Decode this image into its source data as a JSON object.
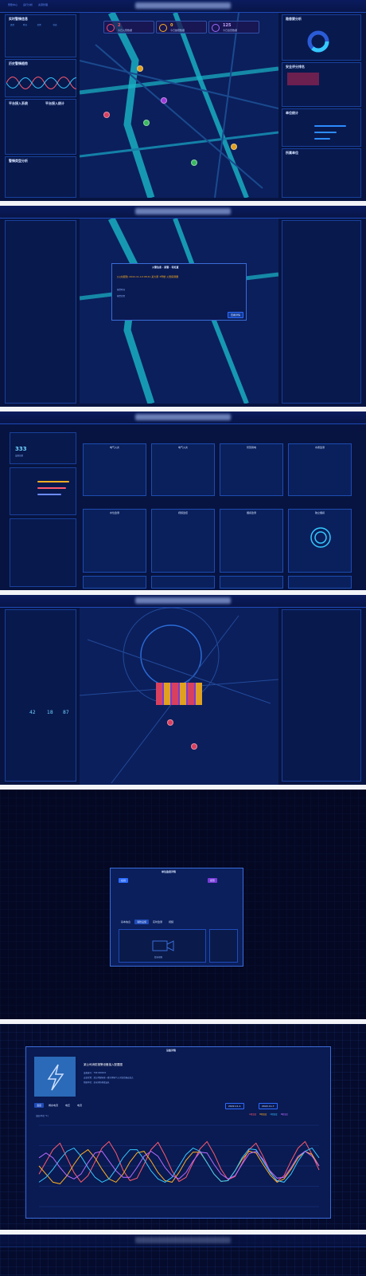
{
  "nav": [
    "预警中心",
    "运行分析",
    "资源管理"
  ],
  "left": {
    "realtime_title": "实时警情信息",
    "trend_title": "历史警情趋势",
    "platform_title": "平台接入系统",
    "platform_title2": "平台接入统计",
    "stats_title": "警情类型分析",
    "table_headers": [
      "类型",
      "时间",
      "位置",
      "状态"
    ],
    "trend_tabs": [
      "日",
      "周",
      "月"
    ],
    "platform_labels": [
      "火灾报警",
      "电气火灾",
      "消防水系统",
      "视频监控"
    ],
    "stat_rows": [
      "火灾报警",
      "电气火灾",
      "消防用水",
      "故障报警",
      "设备离线",
      "其他"
    ]
  },
  "map_stats": [
    {
      "num": "2",
      "label": "今日火警数据",
      "color": "#ff4d6a"
    },
    {
      "num": "0",
      "label": "今日故障数据",
      "color": "#ffb020"
    },
    {
      "num": "125",
      "label": "今日巡查数据",
      "color": "#9d6bff"
    }
  ],
  "right": {
    "analysis_title": "隐患要分析",
    "legend": [
      "一级隐患",
      "二级隐患",
      "三级隐患"
    ],
    "safety_title": "安全评分排名",
    "safety_headers": [
      "排名",
      "单位名称",
      "评分"
    ],
    "unit_title": "单位统计",
    "unit_tabs": [
      "全部",
      "街道",
      "社区"
    ],
    "unit_rows": [
      "在线单位",
      "离线单位",
      "报警单位",
      "故障单位"
    ],
    "org_title": "所属单位",
    "org_tree": [
      "市消防支队",
      "区大队",
      "城东中队",
      "城西中队",
      "街道办事处"
    ]
  },
  "popup": {
    "header": "火警信息 · 报警 · 待处置",
    "alarm_text": "[火灾报警] 2022-11-10 08:41 某大厦 3号楼 火警探测器",
    "fields": [
      "报警时间",
      "报警位置",
      "联系人",
      "处置状态"
    ],
    "button": "查看详情"
  },
  "monitor": {
    "search_placeholder": "请输入单位名称",
    "total_num": "333",
    "total_label": "设备总数",
    "cards": [
      "电气火灾",
      "电气火灾",
      "智慧用电",
      "水质监测",
      "水位监测",
      "视频监控",
      "烟感监测",
      "独立烟感"
    ],
    "status": [
      "正常",
      "报警",
      "故障",
      "离线"
    ]
  },
  "grid_counts": [
    {
      "num": "42",
      "label": "接入单位"
    },
    {
      "num": "18",
      "label": "在线设备"
    },
    {
      "num": "87",
      "label": "报警总数"
    }
  ],
  "dialog": {
    "title": "单位监控详情",
    "tabs": [
      "基本信息",
      "消防设施",
      "实时监测",
      "视频",
      "巡检",
      "报警记录",
      "维保"
    ],
    "tag1": "在线",
    "tag2": "报警",
    "empty": "暂无视频"
  },
  "device": {
    "title": "设备详情",
    "heading": "某公司消防报警设备接入配置图",
    "lines": [
      "设备编号：7921000001",
      "安装位置：某公司配电室一楼东侧电气火灾监控器安装点",
      "所属单位：某市消防救援支队"
    ],
    "info_labels": [
      "设备状态",
      "设备类型",
      "设备型号",
      "接入时间",
      "维保单位",
      "安装日期"
    ],
    "info_values": [
      "正常",
      "电气火灾",
      "HX-2000",
      "2022-01",
      "某公司",
      "2022-01"
    ],
    "tabs": [
      "温度",
      "剩余电流",
      "电压",
      "电流",
      "漏电记录",
      "报警记录"
    ],
    "date_from": "2022-11-1",
    "date_to": "2022-11-7",
    "chart_label": "温度(单位 ℃)",
    "legend": [
      "A相温度",
      "B相温度",
      "C相温度",
      "N相温度"
    ]
  },
  "chart_data": {
    "type": "line",
    "title": "",
    "ylabel": "温度(单位 ℃)",
    "ylim": [
      0,
      100
    ],
    "x": [
      0,
      1,
      2,
      3,
      4,
      5,
      6,
      7,
      8,
      9,
      10,
      11,
      12,
      13,
      14,
      15,
      16,
      17,
      18,
      19,
      20,
      21,
      22,
      23,
      24,
      25,
      26,
      27,
      28,
      29,
      30,
      31,
      32,
      33,
      34,
      35,
      36,
      37,
      38,
      39,
      40
    ],
    "series": [
      {
        "name": "A相温度",
        "color": "#ff5a6e",
        "values": [
          40,
          55,
          70,
          78,
          60,
          42,
          30,
          38,
          55,
          72,
          80,
          66,
          45,
          32,
          35,
          52,
          70,
          79,
          63,
          44,
          31,
          36,
          54,
          71,
          80,
          65,
          46,
          33,
          37,
          53,
          70,
          78,
          62,
          43,
          31,
          38,
          56,
          72,
          80,
          64,
          45
        ]
      },
      {
        "name": "B相温度",
        "color": "#ffb020",
        "values": [
          50,
          40,
          30,
          28,
          38,
          52,
          64,
          70,
          60,
          46,
          34,
          30,
          40,
          55,
          66,
          68,
          56,
          42,
          32,
          30,
          42,
          57,
          67,
          67,
          54,
          40,
          31,
          32,
          44,
          58,
          68,
          66,
          52,
          39,
          30,
          34,
          46,
          60,
          68,
          64,
          50
        ]
      },
      {
        "name": "C相温度",
        "color": "#35c8ff",
        "values": [
          30,
          36,
          46,
          58,
          68,
          72,
          62,
          48,
          36,
          30,
          34,
          46,
          60,
          70,
          70,
          58,
          44,
          34,
          30,
          36,
          50,
          64,
          72,
          68,
          54,
          40,
          31,
          32,
          44,
          60,
          71,
          70,
          56,
          42,
          32,
          30,
          40,
          56,
          68,
          72,
          60
        ]
      },
      {
        "name": "N相温度",
        "color": "#b86bff",
        "values": [
          60,
          66,
          60,
          48,
          38,
          34,
          40,
          54,
          66,
          68,
          56,
          44,
          36,
          36,
          48,
          62,
          68,
          62,
          48,
          38,
          34,
          42,
          56,
          67,
          66,
          52,
          40,
          34,
          38,
          52,
          65,
          68,
          58,
          44,
          35,
          36,
          48,
          62,
          68,
          62,
          50
        ]
      }
    ]
  }
}
